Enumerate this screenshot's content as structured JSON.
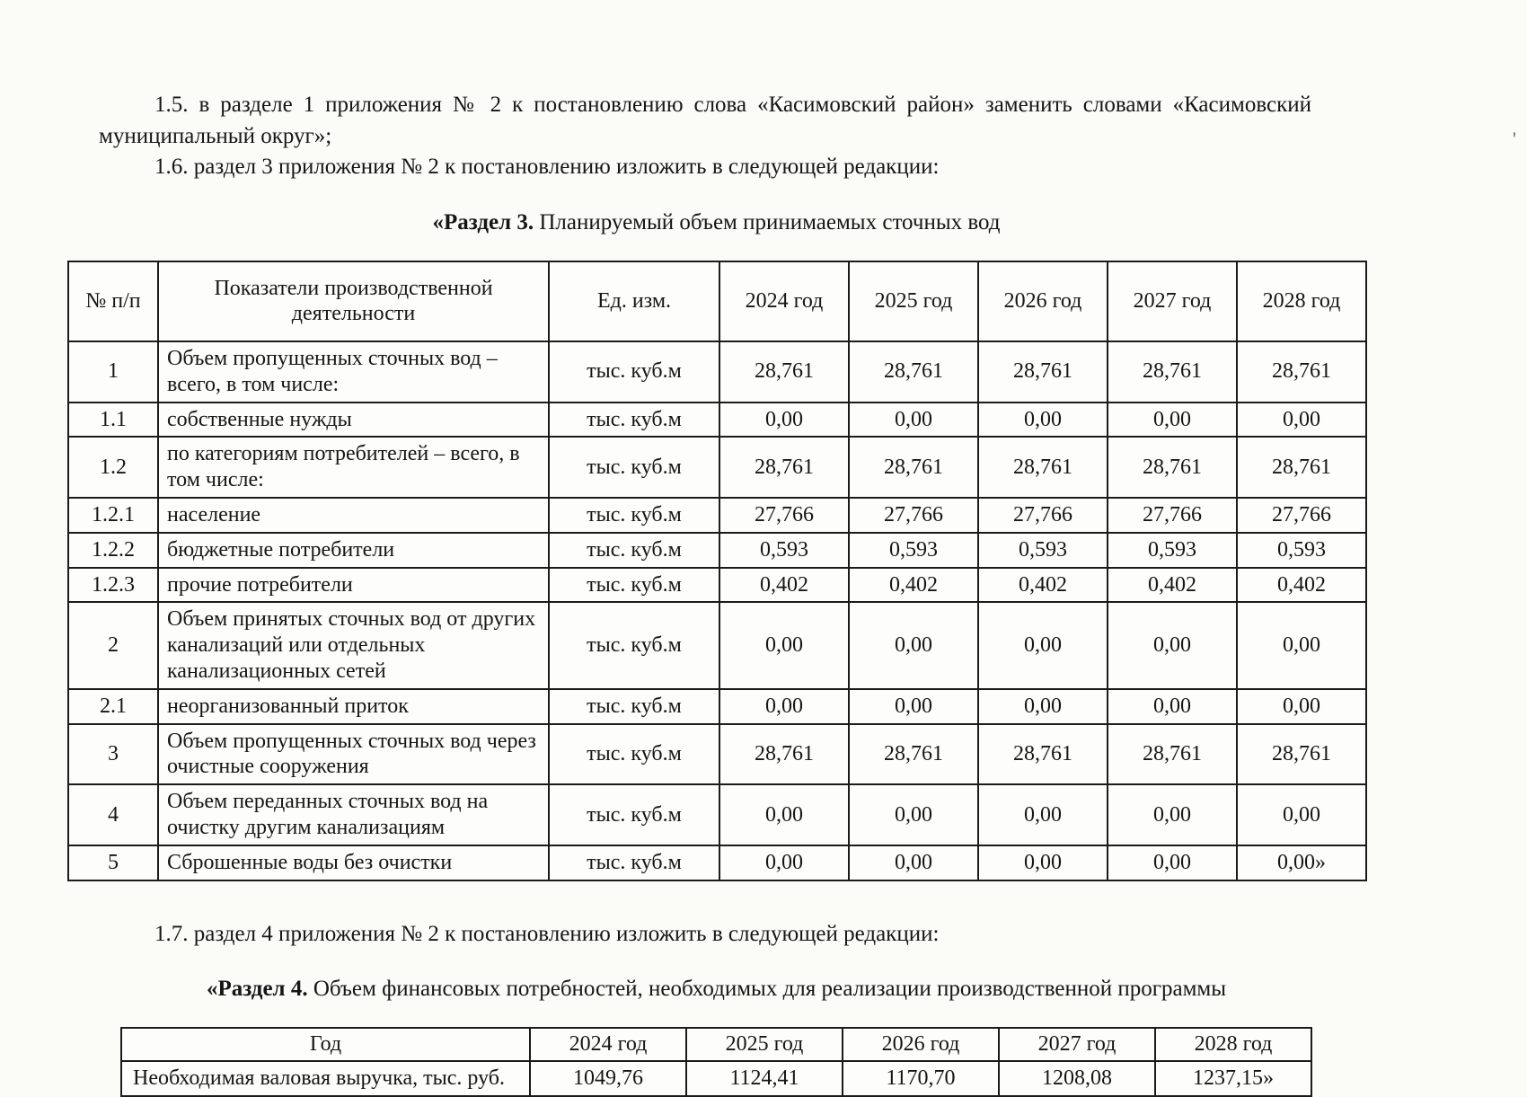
{
  "document": {
    "paragraph_1_5": "1.5. в разделе 1 приложения № 2 к постановлению слова «Касимовский район» заменить словами «Касимовский муниципальный округ»;",
    "paragraph_1_6": "1.6. раздел 3 приложения № 2 к постановлению изложить в следующей редакции:",
    "paragraph_1_7": "1.7. раздел 4 приложения № 2 к постановлению изложить в следующей редакции:"
  },
  "section3": {
    "title_prefix": "«Раздел 3.",
    "title_text": " Планируемый объем принимаемых сточных вод",
    "table": {
      "headers": [
        "№ п/п",
        "Показатели производственной деятельности",
        "Ед. изм.",
        "2024 год",
        "2025 год",
        "2026 год",
        "2027 год",
        "2028 год"
      ],
      "rows": [
        [
          "1",
          "Объем пропущенных сточных вод – всего, в том числе:",
          "тыс. куб.м",
          "28,761",
          "28,761",
          "28,761",
          "28,761",
          "28,761"
        ],
        [
          "1.1",
          "собственные нужды",
          "тыс. куб.м",
          "0,00",
          "0,00",
          "0,00",
          "0,00",
          "0,00"
        ],
        [
          "1.2",
          "по категориям потребителей – всего, в том числе:",
          "тыс. куб.м",
          "28,761",
          "28,761",
          "28,761",
          "28,761",
          "28,761"
        ],
        [
          "1.2.1",
          "население",
          "тыс. куб.м",
          "27,766",
          "27,766",
          "27,766",
          "27,766",
          "27,766"
        ],
        [
          "1.2.2",
          "бюджетные потребители",
          "тыс. куб.м",
          "0,593",
          "0,593",
          "0,593",
          "0,593",
          "0,593"
        ],
        [
          "1.2.3",
          "прочие потребители",
          "тыс. куб.м",
          "0,402",
          "0,402",
          "0,402",
          "0,402",
          "0,402"
        ],
        [
          "2",
          "Объем принятых сточных вод от других канализаций или отдельных канализационных сетей",
          "тыс. куб.м",
          "0,00",
          "0,00",
          "0,00",
          "0,00",
          "0,00"
        ],
        [
          "2.1",
          "неорганизованный приток",
          "тыс. куб.м",
          "0,00",
          "0,00",
          "0,00",
          "0,00",
          "0,00"
        ],
        [
          "3",
          "Объем пропущенных сточных вод через очистные сооружения",
          "тыс. куб.м",
          "28,761",
          "28,761",
          "28,761",
          "28,761",
          "28,761"
        ],
        [
          "4",
          "Объем переданных сточных вод на очистку другим канализациям",
          "тыс. куб.м",
          "0,00",
          "0,00",
          "0,00",
          "0,00",
          "0,00"
        ],
        [
          "5",
          "Сброшенные воды без очистки",
          "тыс. куб.м",
          "0,00",
          "0,00",
          "0,00",
          "0,00",
          "0,00»"
        ]
      ]
    }
  },
  "section4": {
    "title_prefix": "«Раздел 4.",
    "title_text": " Объем финансовых потребностей, необходимых для реализации производственной программы",
    "table": {
      "headers": [
        "Год",
        "2024 год",
        "2025 год",
        "2026 год",
        "2027 год",
        "2028 год"
      ],
      "rows": [
        [
          "Необходимая валовая выручка, тыс. руб.",
          "1049,76",
          "1124,41",
          "1170,70",
          "1208,08",
          "1237,15»"
        ]
      ]
    }
  }
}
